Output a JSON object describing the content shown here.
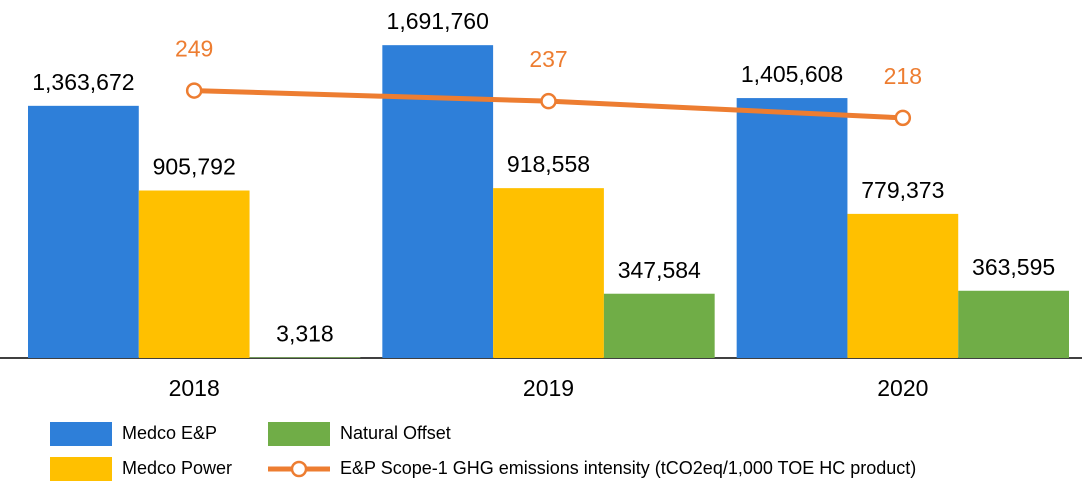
{
  "chart_data": {
    "type": "bar",
    "categories": [
      "2018",
      "2019",
      "2020"
    ],
    "series": [
      {
        "name": "Medco E&P",
        "color": "#2e7fd9",
        "values": [
          1363672,
          1691760,
          1405608
        ],
        "value_labels": [
          "1,363,672",
          "1,691,760",
          "1,405,608"
        ]
      },
      {
        "name": "Medco Power",
        "color": "#ffc000",
        "values": [
          905792,
          918558,
          779373
        ],
        "value_labels": [
          "905,792",
          "918,558",
          "779,373"
        ]
      },
      {
        "name": "Natural Offset",
        "color": "#70ad47",
        "values": [
          3318,
          347584,
          363595
        ],
        "value_labels": [
          "3,318",
          "347,584",
          "363,595"
        ]
      },
      {
        "name": "E&P Scope-1 GHG emissions intensity (tCO2eq/1,000 TOE HC product)",
        "color": "#ed7d31",
        "type": "line",
        "axis": "y2",
        "values": [
          249,
          237,
          218
        ]
      }
    ],
    "ylim": [
      0,
      1936000
    ],
    "y2lim": [
      -55,
      352
    ]
  }
}
